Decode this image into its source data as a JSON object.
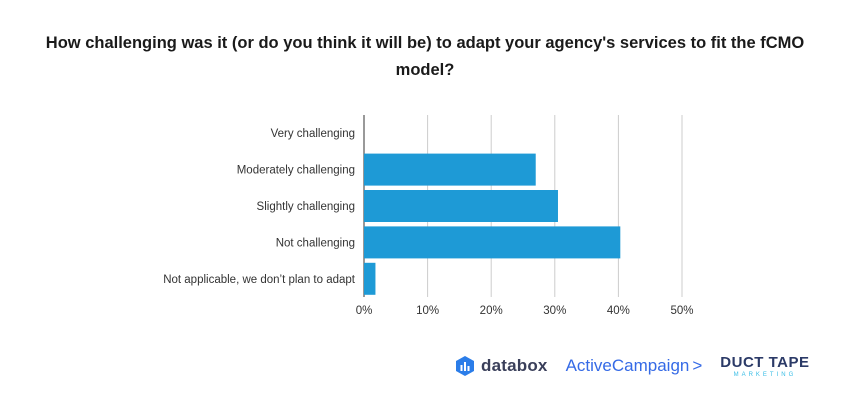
{
  "title": "How challenging was it (or do you think it will be) to adapt your agency's services to fit the fCMO model?",
  "chart_data": {
    "type": "bar",
    "orientation": "horizontal",
    "title": "How challenging was it (or do you think it will be) to adapt your agency's services to fit the fCMO model?",
    "categories": [
      "Very challenging",
      "Moderately challenging",
      "Slightly challenging",
      "Not challenging",
      "Not applicable, we don’t plan to adapt"
    ],
    "values": [
      0,
      27,
      30.5,
      40.3,
      1.8
    ],
    "xlim": [
      0,
      50
    ],
    "xticks": [
      "0%",
      "10%",
      "20%",
      "30%",
      "40%",
      "50%"
    ],
    "xtick_values": [
      0,
      10,
      20,
      30,
      40,
      50
    ],
    "grid": true,
    "bar_color": "#1e9ad6",
    "grid_color": "#cccccc"
  },
  "footer": {
    "databox": "databox",
    "activecampaign": "ActiveCampaign",
    "activecampaign_mark": ">",
    "ducttape": "DUCT TAPE",
    "ducttape_sub": "MARKETING"
  },
  "colors": {
    "databox_blue": "#2b7de9",
    "activecampaign_blue": "#356ae6",
    "ducttape_navy": "#2b3a67",
    "ducttape_cyan": "#38bde6"
  }
}
